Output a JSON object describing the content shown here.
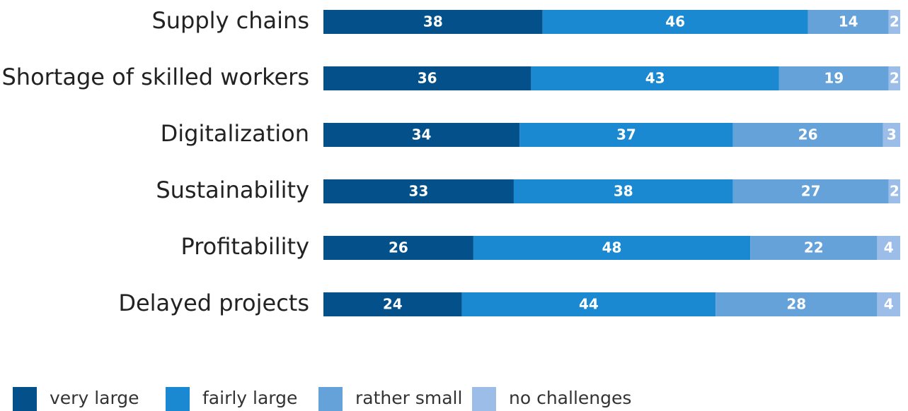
{
  "chart_data": {
    "type": "stacked-bar-horizontal",
    "categories": [
      "Supply chains",
      "Shortage of skilled workers",
      "Digitalization",
      "Sustainability",
      "Profitability",
      "Delayed projects"
    ],
    "series": [
      {
        "name": "very large",
        "color": "#03508a",
        "values": [
          38,
          36,
          34,
          33,
          26,
          24
        ]
      },
      {
        "name": "fairly large",
        "color": "#1a89d2",
        "values": [
          46,
          43,
          37,
          38,
          48,
          44
        ]
      },
      {
        "name": "rather small",
        "color": "#65a2da",
        "values": [
          14,
          19,
          26,
          27,
          22,
          28
        ]
      },
      {
        "name": "no challenges",
        "color": "#9bbde8",
        "values": [
          2,
          2,
          3,
          2,
          4,
          4
        ]
      }
    ],
    "xlim": [
      0,
      100
    ],
    "legend": "bottom"
  }
}
